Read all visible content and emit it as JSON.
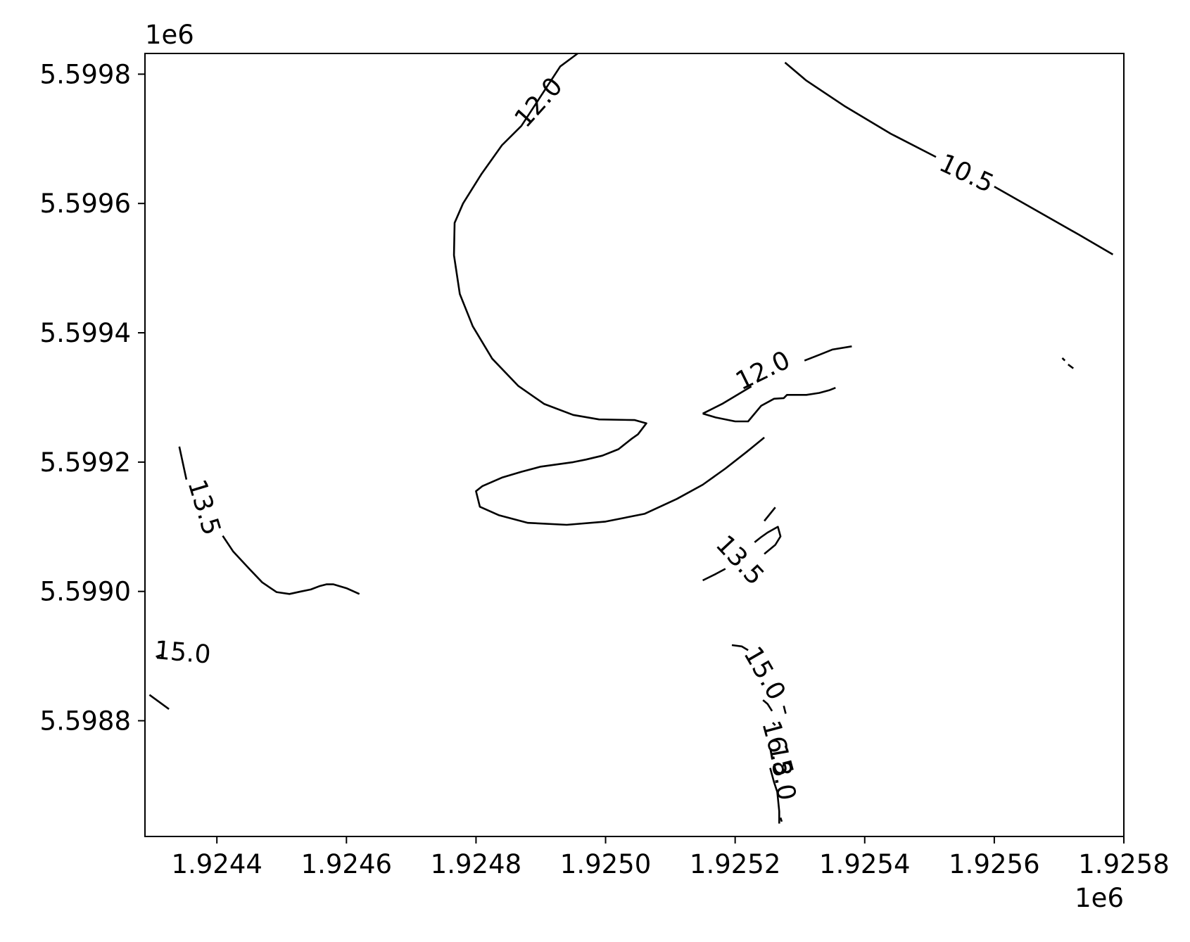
{
  "chart_data": {
    "type": "contour",
    "title": "",
    "xlabel": "",
    "ylabel": "",
    "x_offset_label": "1e6",
    "y_offset_label": "1e6",
    "xlim": [
      1924289,
      1925800
    ],
    "ylim": [
      5598621,
      5599832
    ],
    "x_ticks": [
      {
        "value": 1924400,
        "label": "1.9244"
      },
      {
        "value": 1924600,
        "label": "1.9246"
      },
      {
        "value": 1924800,
        "label": "1.9248"
      },
      {
        "value": 1925000,
        "label": "1.9250"
      },
      {
        "value": 1925200,
        "label": "1.9252"
      },
      {
        "value": 1925400,
        "label": "1.9254"
      },
      {
        "value": 1925600,
        "label": "1.9256"
      },
      {
        "value": 1925800,
        "label": "1.9258"
      }
    ],
    "y_ticks": [
      {
        "value": 5598800,
        "label": "5.5988"
      },
      {
        "value": 5599000,
        "label": "5.5990"
      },
      {
        "value": 5599200,
        "label": "5.5992"
      },
      {
        "value": 5599400,
        "label": "5.5994"
      },
      {
        "value": 5599600,
        "label": "5.5996"
      },
      {
        "value": 5599800,
        "label": "5.5998"
      }
    ],
    "grid": false,
    "line_color": "#000000",
    "contours": [
      {
        "level": "12.0",
        "points": [
          [
            1924957,
            5599832
          ],
          [
            1924930,
            5599812
          ],
          [
            1924870,
            5599720
          ],
          [
            1924840,
            5599690
          ],
          [
            1924808,
            5599645
          ],
          [
            1924780,
            5599600
          ],
          [
            1924767,
            5599570
          ],
          [
            1924766,
            5599520
          ],
          [
            1924775,
            5599460
          ],
          [
            1924795,
            5599410
          ],
          [
            1924825,
            5599360
          ],
          [
            1924865,
            5599318
          ],
          [
            1924905,
            5599290
          ],
          [
            1924950,
            5599273
          ],
          [
            1924990,
            5599266
          ],
          [
            1925045,
            5599265
          ],
          [
            1925063,
            5599260
          ],
          [
            1925050,
            5599243
          ],
          [
            1925040,
            5599236
          ],
          [
            1925020,
            5599220
          ],
          [
            1924995,
            5599210
          ],
          [
            1924970,
            5599204
          ],
          [
            1924950,
            5599200
          ],
          [
            1924900,
            5599193
          ],
          [
            1924870,
            5599185
          ],
          [
            1924840,
            5599176
          ],
          [
            1924810,
            5599163
          ],
          [
            1924800,
            5599155
          ],
          [
            1924806,
            5599131
          ],
          [
            1924835,
            5599118
          ],
          [
            1924880,
            5599106
          ],
          [
            1924940,
            5599103
          ],
          [
            1925000,
            5599108
          ],
          [
            1925060,
            5599120
          ],
          [
            1925110,
            5599143
          ],
          [
            1925150,
            5599165
          ],
          [
            1925185,
            5599190
          ],
          [
            1925218,
            5599216
          ],
          [
            1925245,
            5599238
          ]
        ]
      },
      {
        "level": "12.0",
        "points": [
          [
            1925150,
            5599275
          ],
          [
            1925170,
            5599269
          ],
          [
            1925200,
            5599263
          ],
          [
            1925220,
            5599263
          ],
          [
            1925240,
            5599287
          ],
          [
            1925260,
            5599298
          ],
          [
            1925275,
            5599299
          ],
          [
            1925280,
            5599304
          ],
          [
            1925310,
            5599304
          ],
          [
            1925330,
            5599307
          ],
          [
            1925345,
            5599311
          ],
          [
            1925355,
            5599315
          ]
        ]
      },
      {
        "level": "12.0",
        "points": [
          [
            1925150,
            5599275
          ],
          [
            1925180,
            5599290
          ],
          [
            1925225,
            5599317
          ]
        ]
      },
      {
        "level": "12.0",
        "points": [
          [
            1925307,
            5599357
          ],
          [
            1925330,
            5599366
          ],
          [
            1925350,
            5599374
          ],
          [
            1925380,
            5599379
          ]
        ]
      },
      {
        "level": "10.5",
        "points": [
          [
            1925277,
            5599818
          ],
          [
            1925310,
            5599790
          ],
          [
            1925370,
            5599750
          ],
          [
            1925440,
            5599708
          ],
          [
            1925510,
            5599672
          ]
        ]
      },
      {
        "level": "10.5",
        "points": [
          [
            1925600,
            5599626
          ],
          [
            1925660,
            5599592
          ],
          [
            1925730,
            5599552
          ],
          [
            1925783,
            5599521
          ]
        ]
      },
      {
        "level": "10.5",
        "points": [
          [
            1925705,
            5599361
          ],
          [
            1925709,
            5599357
          ]
        ]
      },
      {
        "level": "10.5",
        "points": [
          [
            1925714,
            5599351
          ],
          [
            1925722,
            5599345
          ]
        ]
      },
      {
        "level": "13.5",
        "points": [
          [
            1924342,
            5599224
          ],
          [
            1924353,
            5599173
          ]
        ]
      },
      {
        "level": "13.5",
        "points": [
          [
            1924409,
            5599086
          ],
          [
            1924425,
            5599062
          ],
          [
            1924450,
            5599035
          ],
          [
            1924470,
            5599014
          ],
          [
            1924492,
            5598999
          ],
          [
            1924512,
            5598996
          ],
          [
            1924530,
            5599000
          ],
          [
            1924545,
            5599003
          ],
          [
            1924558,
            5599008
          ],
          [
            1924569,
            5599011
          ],
          [
            1924580,
            5599011
          ],
          [
            1924600,
            5599005
          ],
          [
            1924620,
            5598996
          ]
        ]
      },
      {
        "level": "13.5",
        "points": [
          [
            1925150,
            5599017
          ],
          [
            1925170,
            5599027
          ],
          [
            1925185,
            5599035
          ]
        ]
      },
      {
        "level": "13.5",
        "points": [
          [
            1925245,
            5599058
          ],
          [
            1925262,
            5599072
          ],
          [
            1925270,
            5599085
          ],
          [
            1925266,
            5599100
          ],
          [
            1925250,
            5599091
          ],
          [
            1925240,
            5599084
          ],
          [
            1925230,
            5599076
          ]
        ]
      },
      {
        "level": "13.5",
        "points": [
          [
            1925245,
            5599109
          ],
          [
            1925262,
            5599130
          ]
        ]
      },
      {
        "level": "15.0",
        "points": [
          [
            1924306,
            5598899
          ],
          [
            1924316,
            5598902
          ]
        ]
      },
      {
        "level": "15.0",
        "points": [
          [
            1924296,
            5598840
          ],
          [
            1924326,
            5598818
          ]
        ]
      },
      {
        "level": "15.0",
        "points": [
          [
            1925195,
            5598917
          ],
          [
            1925210,
            5598915
          ],
          [
            1925220,
            5598909
          ]
        ]
      },
      {
        "level": "15.0",
        "points": [
          [
            1925243,
            5598832
          ],
          [
            1925250,
            5598826
          ],
          [
            1925257,
            5598815
          ]
        ]
      },
      {
        "level": "15.0",
        "points": [
          [
            1925275,
            5598823
          ],
          [
            1925278,
            5598811
          ]
        ]
      },
      {
        "level": "16.5",
        "points": [
          [
            1925258,
            5598797
          ],
          [
            1925262,
            5598793
          ]
        ]
      },
      {
        "level": "16.5",
        "points": [
          [
            1925254,
            5598727
          ],
          [
            1925260,
            5598705
          ],
          [
            1925265,
            5598690
          ],
          [
            1925268,
            5598660
          ],
          [
            1925268,
            5598641
          ]
        ]
      },
      {
        "level": "18.0",
        "points": [
          [
            1925270,
            5598650
          ],
          [
            1925272,
            5598644
          ]
        ]
      }
    ],
    "contour_labels": [
      {
        "text": "12.0",
        "x": 1924897,
        "y": 5599756,
        "angle": -48
      },
      {
        "text": "12.0",
        "x": 1925243,
        "y": 5599341,
        "angle": -26
      },
      {
        "text": "10.5",
        "x": 1925557,
        "y": 5599646,
        "angle": 25
      },
      {
        "text": "13.5",
        "x": 1924380,
        "y": 5599130,
        "angle": 73
      },
      {
        "text": "13.5",
        "x": 1925207,
        "y": 5599048,
        "angle": 47
      },
      {
        "text": "15.0",
        "x": 1924347,
        "y": 5598905,
        "angle": 5
      },
      {
        "text": "15.0",
        "x": 1925245,
        "y": 5598873,
        "angle": 60
      },
      {
        "text": "16.5",
        "x": 1925265,
        "y": 5598757,
        "angle": 75
      },
      {
        "text": "18.0",
        "x": 1925272,
        "y": 5598720,
        "angle": 80
      }
    ]
  }
}
